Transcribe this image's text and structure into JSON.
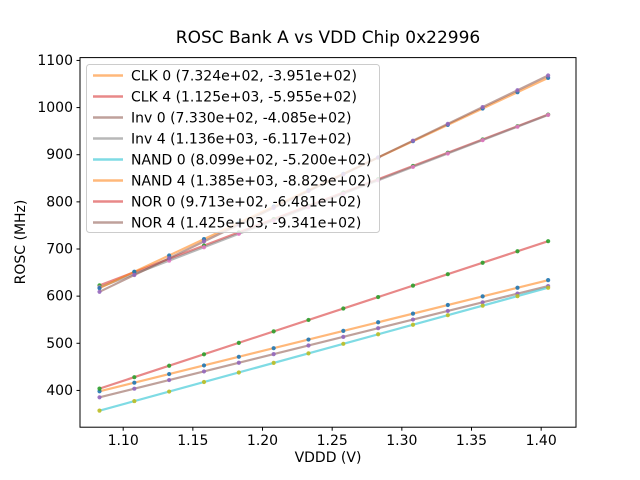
{
  "figure": {
    "title": "ROSC Bank A vs VDD Chip 0x22996",
    "xlabel": "VDDD (V)",
    "ylabel": "ROSC (MHz)",
    "background_color": "#ffffff",
    "spine_color": "#000000",
    "legend_border_color": "#cccccc"
  },
  "chart_data": {
    "type": "scatter",
    "title": "ROSC Bank A vs VDD Chip 0x22996",
    "xlabel": "VDDD (V)",
    "ylabel": "ROSC (MHz)",
    "grid": false,
    "legend_position": "upper left",
    "xlim": [
      1.069,
      1.425
    ],
    "ylim": [
      322,
      1106
    ],
    "xticks": [
      1.1,
      1.15,
      1.2,
      1.25,
      1.3,
      1.35,
      1.4
    ],
    "xtick_labels": [
      "1.10",
      "1.15",
      "1.20",
      "1.25",
      "1.30",
      "1.35",
      "1.40"
    ],
    "yticks": [
      400,
      500,
      600,
      700,
      800,
      900,
      1000,
      1100
    ],
    "ytick_labels": [
      "400",
      "500",
      "600",
      "700",
      "800",
      "900",
      "1000",
      "1100"
    ],
    "x": [
      1.083,
      1.108,
      1.133,
      1.158,
      1.183,
      1.208,
      1.233,
      1.258,
      1.283,
      1.308,
      1.333,
      1.358,
      1.383,
      1.405
    ],
    "series": [
      {
        "name": "CLK 0",
        "legend_label": "CLK 0 (7.324e+02, -3.951e+02)",
        "slope": 732.4,
        "intercept": -395.1,
        "line_color": "#ff7f0e",
        "marker_color": "#1f77b4",
        "y": [
          398.1,
          416.4,
          434.7,
          453.0,
          471.3,
          489.6,
          507.9,
          526.3,
          544.6,
          562.9,
          581.2,
          599.5,
          617.8,
          633.9
        ]
      },
      {
        "name": "CLK 4",
        "legend_label": "CLK 4 (1.125e+03, -5.955e+02)",
        "slope": 1125.0,
        "intercept": -595.5,
        "line_color": "#d62728",
        "marker_color": "#2ca02c",
        "y": [
          622.9,
          651.0,
          679.1,
          707.3,
          735.4,
          763.5,
          791.6,
          819.8,
          847.9,
          876.0,
          904.1,
          932.3,
          960.4,
          985.1
        ]
      },
      {
        "name": "Inv 0",
        "legend_label": "Inv 0 (7.330e+02, -4.085e+02)",
        "slope": 733.0,
        "intercept": -408.5,
        "line_color": "#8c564b",
        "marker_color": "#9467bd",
        "y": [
          385.4,
          403.7,
          422.0,
          440.3,
          458.7,
          477.0,
          495.3,
          513.6,
          532.0,
          550.3,
          568.6,
          586.9,
          605.3,
          621.4
        ]
      },
      {
        "name": "Inv 4",
        "legend_label": "Inv 4 (1.136e+03, -6.117e+02)",
        "slope": 1136.0,
        "intercept": -611.7,
        "line_color": "#7f7f7f",
        "marker_color": "#e377c2",
        "y": [
          618.6,
          647.0,
          675.4,
          703.8,
          732.2,
          760.6,
          789.0,
          817.4,
          845.8,
          874.2,
          902.6,
          931.0,
          959.4,
          984.4
        ]
      },
      {
        "name": "NAND 0",
        "legend_label": "NAND 0 (8.099e+02, -5.200e+02)",
        "slope": 809.9,
        "intercept": -520.0,
        "line_color": "#17becf",
        "marker_color": "#bcbd22",
        "y": [
          357.1,
          377.4,
          397.6,
          417.9,
          438.1,
          458.4,
          478.6,
          498.9,
          519.1,
          539.3,
          559.6,
          579.8,
          600.1,
          617.9
        ]
      },
      {
        "name": "NAND 4",
        "legend_label": "NAND 4 (1.385e+03, -8.829e+02)",
        "slope": 1385.0,
        "intercept": -882.9,
        "line_color": "#ff7f0e",
        "marker_color": "#1f77b4",
        "y": [
          617.1,
          651.7,
          686.3,
          720.9,
          755.6,
          790.2,
          824.8,
          859.4,
          894.1,
          928.7,
          963.3,
          997.9,
          1032.6,
          1063.0
        ]
      },
      {
        "name": "NOR 0",
        "legend_label": "NOR 0 (9.713e+02, -6.481e+02)",
        "slope": 971.3,
        "intercept": -648.1,
        "line_color": "#d62728",
        "marker_color": "#2ca02c",
        "y": [
          403.8,
          428.1,
          452.4,
          476.6,
          500.9,
          525.2,
          549.5,
          573.8,
          598.1,
          622.3,
          646.6,
          670.9,
          695.2,
          716.6
        ]
      },
      {
        "name": "NOR 4",
        "legend_label": "NOR 4 (1.425e+03, -9.341e+02)",
        "slope": 1425.0,
        "intercept": -934.1,
        "line_color": "#8c564b",
        "marker_color": "#9467bd",
        "y": [
          609.2,
          644.8,
          680.4,
          716.1,
          751.7,
          787.3,
          822.9,
          858.6,
          894.2,
          929.8,
          965.4,
          1001.1,
          1036.7,
          1068.0
        ]
      }
    ]
  }
}
